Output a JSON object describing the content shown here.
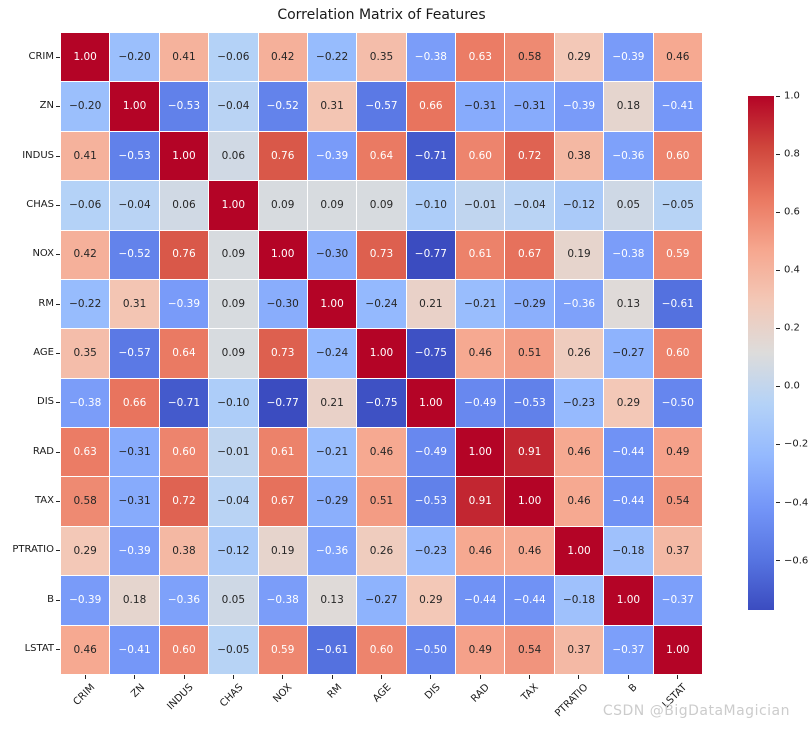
{
  "title": "Correlation Matrix of Features",
  "watermark": "CSDN @BigDataMagician",
  "chart_data": {
    "type": "heatmap",
    "title": "Correlation Matrix of Features",
    "categories": [
      "CRIM",
      "ZN",
      "INDUS",
      "CHAS",
      "NOX",
      "RM",
      "AGE",
      "DIS",
      "RAD",
      "TAX",
      "PTRATIO",
      "B",
      "LSTAT"
    ],
    "matrix": [
      [
        1.0,
        -0.2,
        0.41,
        -0.06,
        0.42,
        -0.22,
        0.35,
        -0.38,
        0.63,
        0.58,
        0.29,
        -0.39,
        0.46
      ],
      [
        -0.2,
        1.0,
        -0.53,
        -0.04,
        -0.52,
        0.31,
        -0.57,
        0.66,
        -0.31,
        -0.31,
        -0.39,
        0.18,
        -0.41
      ],
      [
        0.41,
        -0.53,
        1.0,
        0.06,
        0.76,
        -0.39,
        0.64,
        -0.71,
        0.6,
        0.72,
        0.38,
        -0.36,
        0.6
      ],
      [
        -0.06,
        -0.04,
        0.06,
        1.0,
        0.09,
        0.09,
        0.09,
        -0.1,
        -0.01,
        -0.04,
        -0.12,
        0.05,
        -0.05
      ],
      [
        0.42,
        -0.52,
        0.76,
        0.09,
        1.0,
        -0.3,
        0.73,
        -0.77,
        0.61,
        0.67,
        0.19,
        -0.38,
        0.59
      ],
      [
        -0.22,
        0.31,
        -0.39,
        0.09,
        -0.3,
        1.0,
        -0.24,
        0.21,
        -0.21,
        -0.29,
        -0.36,
        0.13,
        -0.61
      ],
      [
        0.35,
        -0.57,
        0.64,
        0.09,
        0.73,
        -0.24,
        1.0,
        -0.75,
        0.46,
        0.51,
        0.26,
        -0.27,
        0.6
      ],
      [
        -0.38,
        0.66,
        -0.71,
        -0.1,
        -0.77,
        0.21,
        -0.75,
        1.0,
        -0.49,
        -0.53,
        -0.23,
        0.29,
        -0.5
      ],
      [
        0.63,
        -0.31,
        0.6,
        -0.01,
        0.61,
        -0.21,
        0.46,
        -0.49,
        1.0,
        0.91,
        0.46,
        -0.44,
        0.49
      ],
      [
        0.58,
        -0.31,
        0.72,
        -0.04,
        0.67,
        -0.29,
        0.51,
        -0.53,
        0.91,
        1.0,
        0.46,
        -0.44,
        0.54
      ],
      [
        0.29,
        -0.39,
        0.38,
        -0.12,
        0.19,
        -0.36,
        0.26,
        -0.23,
        0.46,
        0.46,
        1.0,
        -0.18,
        0.37
      ],
      [
        -0.39,
        0.18,
        -0.36,
        0.05,
        -0.38,
        0.13,
        -0.27,
        0.29,
        -0.44,
        -0.44,
        -0.18,
        1.0,
        -0.37
      ],
      [
        0.46,
        -0.41,
        0.6,
        -0.05,
        0.59,
        -0.61,
        0.6,
        -0.5,
        0.49,
        0.54,
        0.37,
        -0.37,
        1.0
      ]
    ],
    "colormap": "coolwarm",
    "vmin": -0.77,
    "vmax": 1.0,
    "annotation_decimals": 2,
    "colorbar": {
      "position": "right",
      "ticks": [
        {
          "value": 1.0,
          "label": "1.0"
        },
        {
          "value": 0.8,
          "label": "0.8"
        },
        {
          "value": 0.6,
          "label": "0.6"
        },
        {
          "value": 0.4,
          "label": "0.4"
        },
        {
          "value": 0.2,
          "label": "0.2"
        },
        {
          "value": 0.0,
          "label": "0.0"
        },
        {
          "value": -0.2,
          "label": "−0.2"
        },
        {
          "value": -0.4,
          "label": "−0.4"
        },
        {
          "value": -0.6,
          "label": "−0.6"
        }
      ]
    },
    "grid_lines": true
  },
  "colors": {
    "cool_end": "#3b4cc0",
    "neutral": "#dddcdb",
    "warm_end": "#b40426",
    "annotation_dark": "#262626",
    "annotation_light": "#ffffff",
    "watermark_gray": "#cccccc"
  }
}
